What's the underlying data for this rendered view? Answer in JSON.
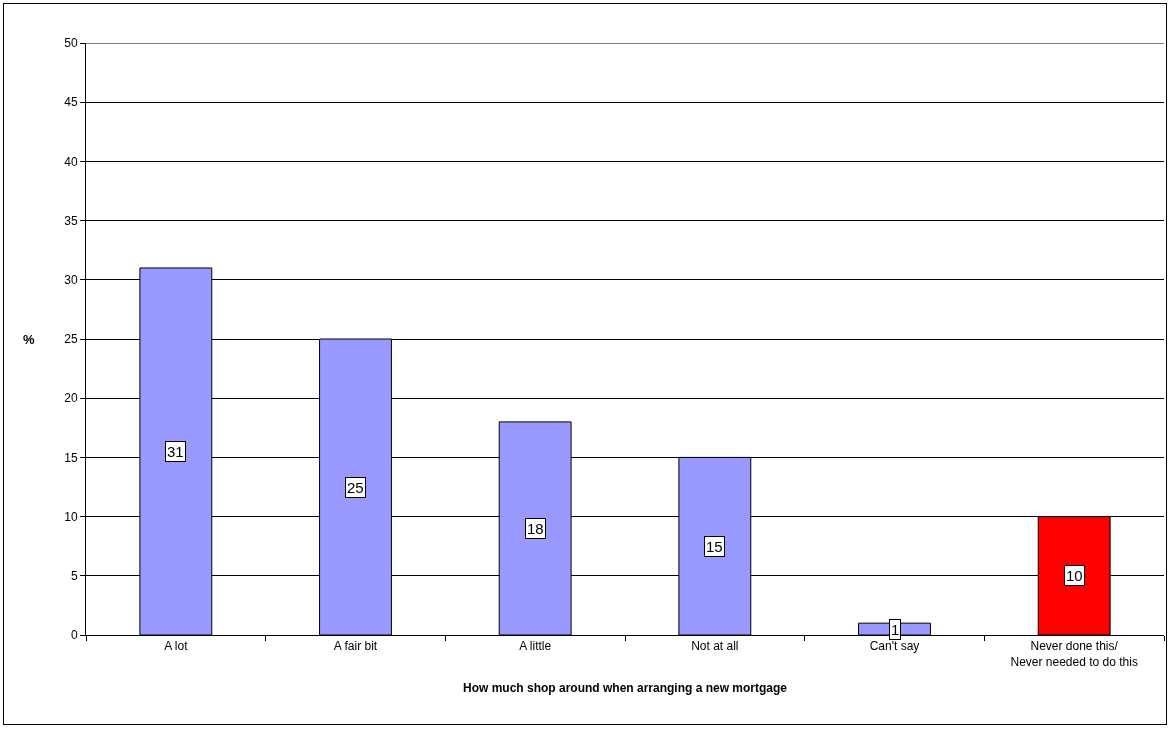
{
  "chart_data": {
    "type": "bar",
    "categories": [
      "A lot",
      "A fair bit",
      "A little",
      "Not at all",
      "Can't say",
      "Never done this/\nNever needed to do this"
    ],
    "values": [
      31,
      25,
      18,
      15,
      1,
      10
    ],
    "colors": [
      "#9999ff",
      "#9999ff",
      "#9999ff",
      "#9999ff",
      "#9999ff",
      "#ff0000"
    ],
    "xlabel": "How much shop around when arranging a new mortgage",
    "ylabel": "%",
    "ylim": [
      0,
      50
    ],
    "yticks": [
      0,
      5,
      10,
      15,
      20,
      25,
      30,
      35,
      40,
      45,
      50
    ],
    "grid": "y",
    "data_labels": true
  }
}
